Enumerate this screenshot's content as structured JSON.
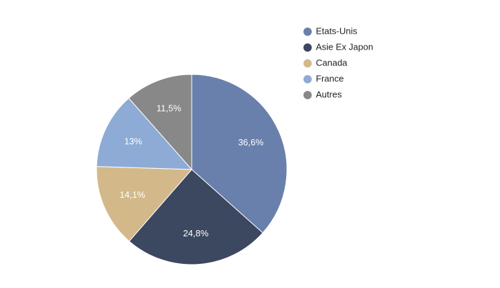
{
  "chart_data": {
    "type": "pie",
    "categories": [
      "Etats-Unis",
      "Asie Ex Japon",
      "Canada",
      "France",
      "Autres"
    ],
    "values": [
      36.6,
      24.8,
      14.1,
      13,
      11.5
    ],
    "value_labels": [
      "36,6%",
      "24,8%",
      "14,1%",
      "13%",
      "11,5%"
    ],
    "colors": [
      "#6880ab",
      "#3c4760",
      "#d3b98a",
      "#8eabd6",
      "#888888"
    ],
    "legend": "right"
  }
}
